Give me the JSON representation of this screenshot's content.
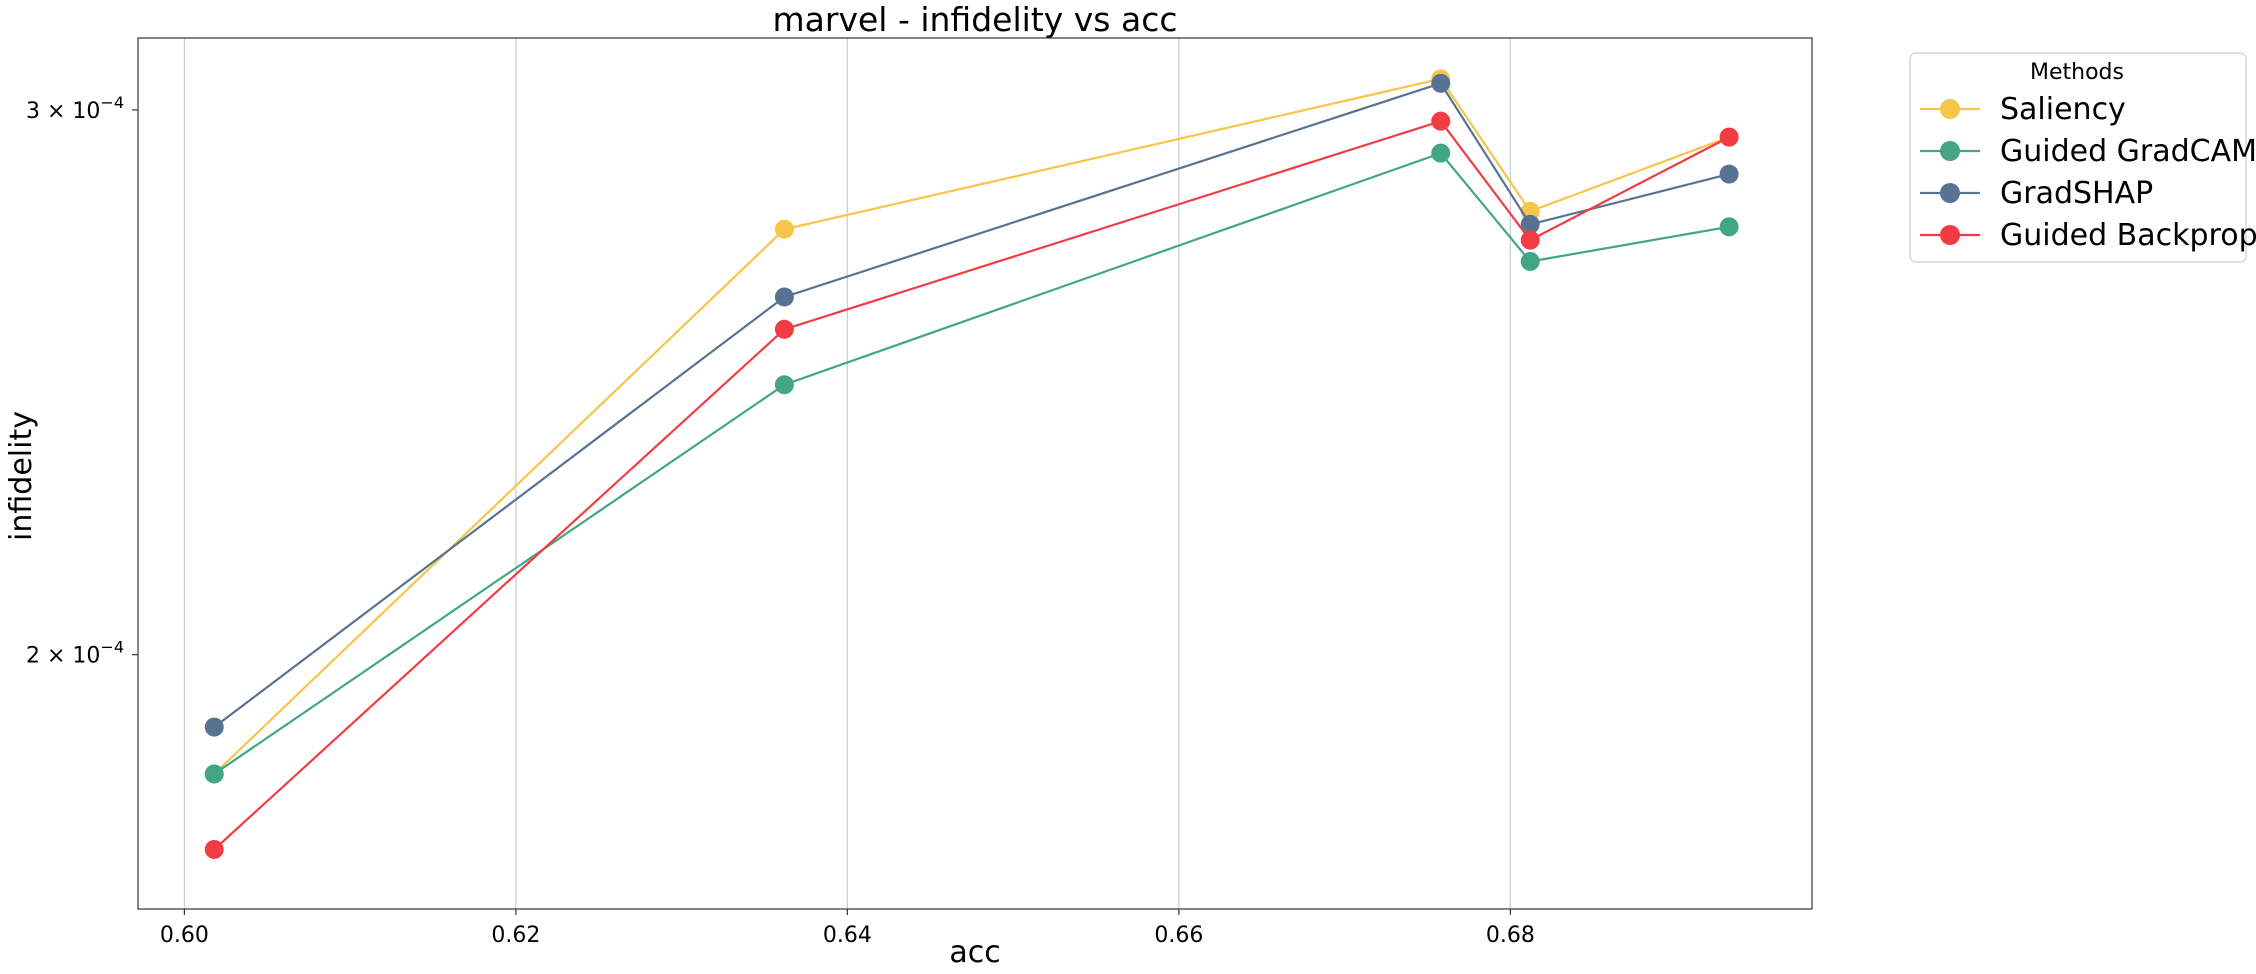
{
  "chart_data": {
    "type": "line",
    "title": "marvel - infidelity vs acc",
    "xlabel": "acc",
    "ylabel": "infidelity",
    "x": [
      0.6018,
      0.6362,
      0.6758,
      0.6812,
      0.6932
    ],
    "xlim": [
      0.5972,
      0.6982
    ],
    "ylim": [
      0.0001655,
      0.0003165
    ],
    "yscale": "log",
    "grid": "x",
    "x_ticks": [
      {
        "value": 0.6,
        "label": "0.60"
      },
      {
        "value": 0.62,
        "label": "0.62"
      },
      {
        "value": 0.64,
        "label": "0.64"
      },
      {
        "value": 0.66,
        "label": "0.66"
      },
      {
        "value": 0.68,
        "label": "0.68"
      }
    ],
    "y_ticks": [
      {
        "value": 0.0002,
        "label": "2 × 10",
        "exp": "−4"
      },
      {
        "value": 0.0003,
        "label": "3 × 10",
        "exp": "−4"
      }
    ],
    "legend": {
      "title": "Methods",
      "placement": "outside-top-right"
    },
    "series": [
      {
        "name": "Saliency",
        "color": "#F6C54A",
        "values": [
          0.000183,
          0.0002745,
          0.000307,
          0.0002782,
          0.000294
        ]
      },
      {
        "name": "Guided GradCAM",
        "color": "#42A586",
        "values": [
          0.000183,
          0.0002445,
          0.0002905,
          0.000268,
          0.000275
        ]
      },
      {
        "name": "GradSHAP",
        "color": "#587392",
        "values": [
          0.0001895,
          0.000261,
          0.000306,
          0.0002755,
          0.000286
        ]
      },
      {
        "name": "Guided Backprop",
        "color": "#F23C43",
        "values": [
          0.000173,
          0.0002548,
          0.0002975,
          0.0002723,
          0.000294
        ]
      }
    ]
  }
}
